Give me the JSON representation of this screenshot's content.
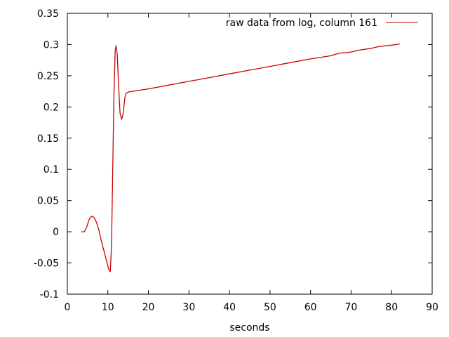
{
  "chart_data": {
    "type": "line",
    "title": "",
    "xlabel": "seconds",
    "ylabel": "",
    "xlim": [
      0,
      90
    ],
    "ylim": [
      -0.1,
      0.35
    ],
    "xticks": [
      0,
      10,
      20,
      30,
      40,
      50,
      60,
      70,
      80,
      90
    ],
    "yticks": [
      -0.1,
      -0.05,
      0,
      0.05,
      0.1,
      0.15,
      0.2,
      0.25,
      0.3,
      0.35
    ],
    "xtick_labels": [
      "0",
      "10",
      "20",
      "30",
      "40",
      "50",
      "60",
      "70",
      "80",
      "90"
    ],
    "ytick_labels": [
      "-0.1",
      "-0.05",
      "0",
      "0.05",
      "0.1",
      "0.15",
      "0.2",
      "0.25",
      "0.3",
      "0.35"
    ],
    "grid": false,
    "legend_position": "top-right",
    "series": [
      {
        "name": "raw data from log, column 161",
        "color": "#cc0000",
        "x": [
          3.5,
          4.2,
          4.8,
          5.4,
          6.0,
          6.6,
          7.2,
          7.8,
          8.4,
          9.0,
          9.6,
          10.2,
          10.6,
          10.9,
          11.2,
          11.5,
          11.8,
          12.0,
          12.3,
          12.6,
          13.0,
          13.4,
          13.8,
          14.2,
          14.5,
          14.8,
          15.0,
          20,
          25,
          30,
          35,
          40,
          45,
          50,
          55,
          60,
          62,
          65,
          67,
          70,
          72,
          75,
          77,
          80,
          82
        ],
        "y": [
          0.0,
          0.0,
          0.008,
          0.02,
          0.025,
          0.023,
          0.015,
          0.002,
          -0.015,
          -0.03,
          -0.045,
          -0.06,
          -0.064,
          -0.02,
          0.1,
          0.22,
          0.29,
          0.298,
          0.285,
          0.24,
          0.19,
          0.18,
          0.19,
          0.215,
          0.222,
          0.223,
          0.224,
          0.229,
          0.235,
          0.241,
          0.247,
          0.253,
          0.259,
          0.265,
          0.271,
          0.277,
          0.279,
          0.282,
          0.286,
          0.288,
          0.291,
          0.294,
          0.297,
          0.299,
          0.301
        ]
      }
    ]
  }
}
